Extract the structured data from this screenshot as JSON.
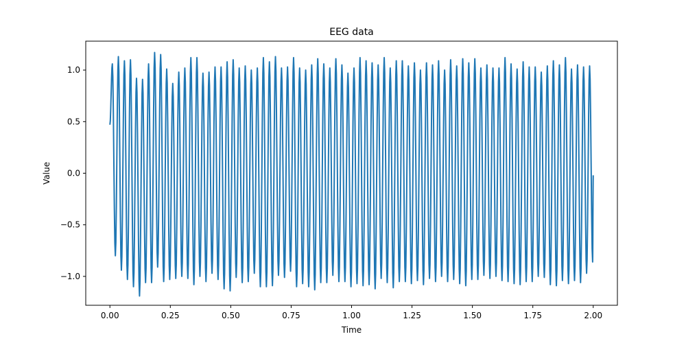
{
  "chart_data": {
    "type": "line",
    "title": "EEG data",
    "xlabel": "Time",
    "ylabel": "Value",
    "xlim": [
      -0.1,
      2.1
    ],
    "ylim": [
      -1.28,
      1.28
    ],
    "xticks": [
      0.0,
      0.25,
      0.5,
      0.75,
      1.0,
      1.25,
      1.5,
      1.75,
      2.0
    ],
    "xtick_labels": [
      "0.00",
      "0.25",
      "0.50",
      "0.75",
      "1.00",
      "1.25",
      "1.50",
      "1.75",
      "2.00"
    ],
    "yticks": [
      -1.0,
      -0.5,
      0.0,
      0.5,
      1.0
    ],
    "ytick_labels": [
      "−1.0",
      "−0.5",
      "0.0",
      "0.5",
      "1.0"
    ],
    "grid": false,
    "legend": "none",
    "series": [
      {
        "color": "#1f77b4",
        "signal": {
          "form": "sine",
          "frequency_hz": 40,
          "amplitude": 1.0,
          "noise_std": 0.06,
          "x_start": 0.0,
          "x_end": 2.0,
          "sample_rate_hz": 500
        },
        "peaks": [
          [
            0.01,
            1.06
          ],
          [
            0.035,
            1.13
          ],
          [
            0.06,
            1.09
          ],
          [
            0.085,
            1.1
          ],
          [
            0.11,
            0.92
          ],
          [
            0.135,
            0.91
          ],
          [
            0.16,
            1.06
          ],
          [
            0.185,
            1.17
          ],
          [
            0.21,
            1.15
          ],
          [
            0.235,
            1.01
          ],
          [
            0.26,
            0.87
          ],
          [
            0.285,
            0.98
          ],
          [
            0.31,
            1.02
          ],
          [
            0.335,
            1.12
          ],
          [
            0.36,
            1.12
          ],
          [
            0.385,
            0.97
          ],
          [
            0.41,
            0.98
          ],
          [
            0.435,
            1.03
          ],
          [
            0.46,
            1.03
          ],
          [
            0.485,
            1.08
          ],
          [
            0.51,
            1.1
          ],
          [
            0.535,
            1.02
          ],
          [
            0.56,
            1.04
          ],
          [
            0.585,
            1.0
          ],
          [
            0.61,
            1.02
          ],
          [
            0.635,
            1.12
          ],
          [
            0.66,
            1.08
          ],
          [
            0.685,
            1.13
          ],
          [
            0.71,
            1.02
          ],
          [
            0.735,
            1.03
          ],
          [
            0.76,
            1.12
          ],
          [
            0.785,
            1.02
          ],
          [
            0.81,
            1.0
          ],
          [
            0.835,
            1.05
          ],
          [
            0.86,
            1.11
          ],
          [
            0.885,
            1.06
          ],
          [
            0.91,
            1.02
          ],
          [
            0.935,
            1.11
          ],
          [
            0.96,
            1.05
          ],
          [
            0.985,
            0.97
          ],
          [
            1.01,
            1.02
          ],
          [
            1.035,
            1.12
          ],
          [
            1.06,
            1.09
          ],
          [
            1.085,
            1.07
          ],
          [
            1.11,
            1.05
          ],
          [
            1.135,
            1.12
          ],
          [
            1.16,
            1.02
          ],
          [
            1.185,
            1.09
          ],
          [
            1.21,
            1.09
          ],
          [
            1.235,
            1.04
          ],
          [
            1.26,
            1.07
          ],
          [
            1.285,
            1.0
          ],
          [
            1.31,
            1.07
          ],
          [
            1.335,
            1.05
          ],
          [
            1.36,
            1.09
          ],
          [
            1.385,
            1.0
          ],
          [
            1.41,
            1.1
          ],
          [
            1.435,
            1.04
          ],
          [
            1.46,
            1.11
          ],
          [
            1.485,
            1.07
          ],
          [
            1.51,
            1.11
          ],
          [
            1.535,
            1.02
          ],
          [
            1.56,
            1.05
          ],
          [
            1.585,
            1.02
          ],
          [
            1.61,
            1.02
          ],
          [
            1.635,
            1.12
          ],
          [
            1.66,
            1.06
          ],
          [
            1.685,
            1.01
          ],
          [
            1.71,
            1.08
          ],
          [
            1.735,
            1.03
          ],
          [
            1.76,
            1.03
          ],
          [
            1.785,
            0.98
          ],
          [
            1.81,
            1.04
          ],
          [
            1.835,
            1.09
          ],
          [
            1.86,
            1.05
          ],
          [
            1.885,
            1.12
          ],
          [
            1.91,
            1.01
          ],
          [
            1.935,
            1.05
          ],
          [
            1.96,
            1.03
          ],
          [
            1.985,
            1.04
          ]
        ],
        "troughs": [
          [
            0.0225,
            -0.8
          ],
          [
            0.0475,
            -0.94
          ],
          [
            0.0725,
            -1.03
          ],
          [
            0.0975,
            -1.1
          ],
          [
            0.1225,
            -1.19
          ],
          [
            0.1475,
            -1.06
          ],
          [
            0.1725,
            -1.06
          ],
          [
            0.1975,
            -0.91
          ],
          [
            0.2225,
            -1.05
          ],
          [
            0.2475,
            -1.03
          ],
          [
            0.2725,
            -1.02
          ],
          [
            0.2975,
            -1.0
          ],
          [
            0.3225,
            -1.02
          ],
          [
            0.3475,
            -1.08
          ],
          [
            0.3725,
            -1.0
          ],
          [
            0.3975,
            -1.05
          ],
          [
            0.4225,
            -0.97
          ],
          [
            0.4475,
            -1.03
          ],
          [
            0.4725,
            -1.12
          ],
          [
            0.4975,
            -1.14
          ],
          [
            0.5225,
            -1.01
          ],
          [
            0.5475,
            -1.06
          ],
          [
            0.5725,
            -1.05
          ],
          [
            0.5975,
            -0.97
          ],
          [
            0.6225,
            -1.1
          ],
          [
            0.6475,
            -1.1
          ],
          [
            0.6725,
            -1.09
          ],
          [
            0.6975,
            -0.99
          ],
          [
            0.7225,
            -1.01
          ],
          [
            0.7475,
            -0.95
          ],
          [
            0.7725,
            -1.1
          ],
          [
            0.7975,
            -1.07
          ],
          [
            0.8225,
            -1.1
          ],
          [
            0.8475,
            -1.13
          ],
          [
            0.8725,
            -1.06
          ],
          [
            0.8975,
            -1.06
          ],
          [
            0.9225,
            -0.99
          ],
          [
            0.9475,
            -1.05
          ],
          [
            0.9725,
            -1.05
          ],
          [
            0.9975,
            -1.1
          ],
          [
            1.0225,
            -1.07
          ],
          [
            1.0475,
            -1.09
          ],
          [
            1.0725,
            -1.08
          ],
          [
            1.0975,
            -1.12
          ],
          [
            1.1225,
            -1.02
          ],
          [
            1.1475,
            -1.06
          ],
          [
            1.1725,
            -1.11
          ],
          [
            1.1975,
            -1.05
          ],
          [
            1.2225,
            -1.05
          ],
          [
            1.2475,
            -1.07
          ],
          [
            1.2725,
            -1.04
          ],
          [
            1.2975,
            -1.08
          ],
          [
            1.3225,
            -1.02
          ],
          [
            1.3475,
            -1.05
          ],
          [
            1.3725,
            -1.0
          ],
          [
            1.3975,
            -1.05
          ],
          [
            1.4225,
            -1.03
          ],
          [
            1.4475,
            -1.07
          ],
          [
            1.4725,
            -1.09
          ],
          [
            1.4975,
            -1.03
          ],
          [
            1.5225,
            -1.03
          ],
          [
            1.5475,
            -0.99
          ],
          [
            1.5725,
            -1.02
          ],
          [
            1.5975,
            -1.0
          ],
          [
            1.6225,
            -1.04
          ],
          [
            1.6475,
            -1.05
          ],
          [
            1.6725,
            -1.07
          ],
          [
            1.6975,
            -1.08
          ],
          [
            1.7225,
            -1.05
          ],
          [
            1.7475,
            -1.05
          ],
          [
            1.7725,
            -1.0
          ],
          [
            1.7975,
            -1.01
          ],
          [
            1.8225,
            -1.08
          ],
          [
            1.8475,
            -1.09
          ],
          [
            1.8725,
            -1.04
          ],
          [
            1.8975,
            -1.07
          ],
          [
            1.9225,
            -1.04
          ],
          [
            1.9475,
            -1.06
          ],
          [
            1.9725,
            -0.97
          ],
          [
            1.9975,
            -0.86
          ]
        ],
        "start_value": 0.47,
        "end_value": -0.02
      }
    ]
  }
}
